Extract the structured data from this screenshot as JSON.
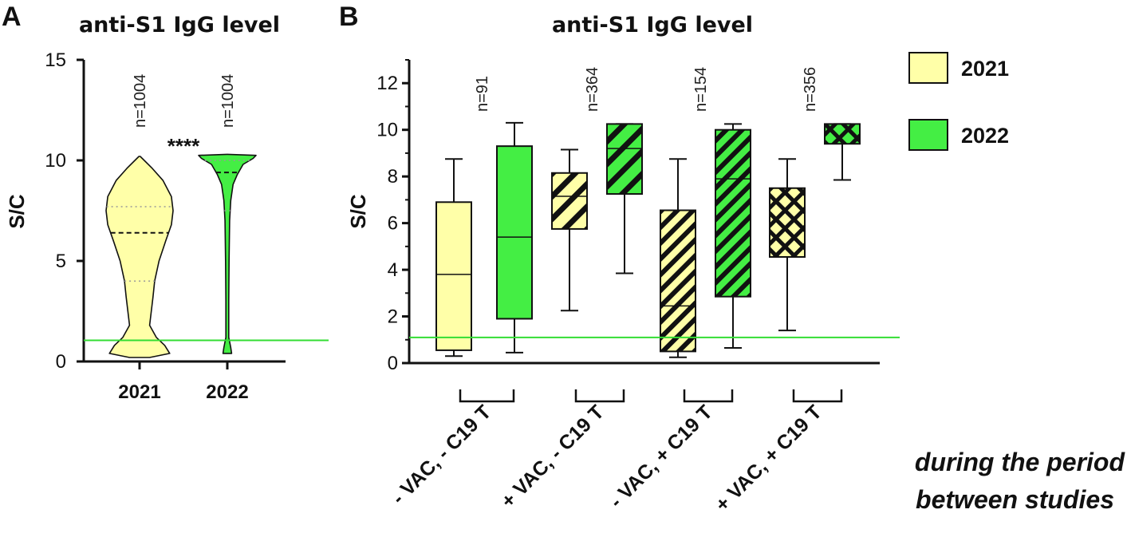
{
  "chart_data": [
    {
      "panel": "A",
      "type": "violin",
      "title": "anti-S1 IgG level",
      "ylabel": "S/C",
      "ylim": [
        0,
        15
      ],
      "yticks": [
        0,
        5,
        10,
        15
      ],
      "categories": [
        "2021",
        "2022"
      ],
      "n_labels": [
        "n=1004",
        "n=1004"
      ],
      "significance": "****",
      "cutoff_line": 1.05,
      "series": [
        {
          "name": "2021",
          "color": "#ffffa8",
          "median": 6.4,
          "q1": 4.0,
          "q3": 7.7,
          "min": 0.2,
          "max": 10.2,
          "density": [
            [
              0.2,
              0.3
            ],
            [
              0.4,
              0.9
            ],
            [
              0.8,
              0.75
            ],
            [
              1.2,
              0.5
            ],
            [
              1.8,
              0.3
            ],
            [
              2.5,
              0.35
            ],
            [
              3.2,
              0.4
            ],
            [
              4.0,
              0.45
            ],
            [
              5.0,
              0.58
            ],
            [
              6.0,
              0.78
            ],
            [
              6.8,
              0.95
            ],
            [
              7.5,
              1.0
            ],
            [
              8.2,
              0.95
            ],
            [
              9.0,
              0.7
            ],
            [
              9.6,
              0.38
            ],
            [
              10.2,
              0.02
            ]
          ]
        },
        {
          "name": "2022",
          "color": "#44ee44",
          "median": 9.4,
          "q1": 7.5,
          "q3": 10.0,
          "min": 0.4,
          "max": 10.3,
          "density": [
            [
              0.4,
              0.15
            ],
            [
              0.7,
              0.12
            ],
            [
              1.2,
              0.05
            ],
            [
              3.0,
              0.05
            ],
            [
              5.0,
              0.06
            ],
            [
              7.0,
              0.08
            ],
            [
              8.0,
              0.12
            ],
            [
              8.8,
              0.2
            ],
            [
              9.3,
              0.35
            ],
            [
              9.8,
              0.55
            ],
            [
              10.1,
              0.9
            ],
            [
              10.25,
              1.0
            ],
            [
              10.3,
              0.02
            ]
          ]
        }
      ]
    },
    {
      "panel": "B",
      "type": "box",
      "title": "anti-S1 IgG level",
      "ylabel": "S/C",
      "ylim": [
        0,
        13
      ],
      "yticks": [
        0,
        2,
        4,
        6,
        8,
        10,
        12
      ],
      "cutoff_line": 1.1,
      "groups": [
        "- VAC, - C19 T",
        "+ VAC, - C19 T",
        "- VAC, + C19 T",
        "+ VAC, + C19 T"
      ],
      "n_labels": [
        "n=91",
        "n=364",
        "n=154",
        "n=356"
      ],
      "legend": [
        {
          "label": "2021",
          "color": "#ffffa8"
        },
        {
          "label": "2022",
          "color": "#44ee44"
        }
      ],
      "legend_position": "right",
      "note": [
        "during the period",
        "between studies"
      ],
      "boxes": [
        {
          "group": 0,
          "year": "2021",
          "pattern": "none",
          "min": 0.3,
          "q1": 0.55,
          "median": 3.8,
          "q3": 6.9,
          "max": 8.75
        },
        {
          "group": 0,
          "year": "2022",
          "pattern": "none",
          "min": 0.45,
          "q1": 1.9,
          "median": 5.4,
          "q3": 9.3,
          "max": 10.3
        },
        {
          "group": 1,
          "year": "2021",
          "pattern": "diag-wide",
          "min": 2.25,
          "q1": 5.75,
          "median": 7.15,
          "q3": 8.15,
          "max": 9.15
        },
        {
          "group": 1,
          "year": "2022",
          "pattern": "diag-wide",
          "min": 3.85,
          "q1": 7.25,
          "median": 9.2,
          "q3": 10.25,
          "max": 10.25
        },
        {
          "group": 2,
          "year": "2021",
          "pattern": "diag-dense",
          "min": 0.25,
          "q1": 0.5,
          "median": 2.45,
          "q3": 6.55,
          "max": 8.75
        },
        {
          "group": 2,
          "year": "2022",
          "pattern": "diag-dense",
          "min": 0.65,
          "q1": 2.85,
          "median": 7.9,
          "q3": 10.0,
          "max": 10.25
        },
        {
          "group": 3,
          "year": "2021",
          "pattern": "cross",
          "min": 1.4,
          "q1": 4.55,
          "median": 4.55,
          "q3": 7.5,
          "max": 8.75
        },
        {
          "group": 3,
          "year": "2022",
          "pattern": "cross",
          "min": 7.85,
          "q1": 9.4,
          "median": 9.4,
          "q3": 10.25,
          "max": 10.25
        }
      ]
    }
  ]
}
